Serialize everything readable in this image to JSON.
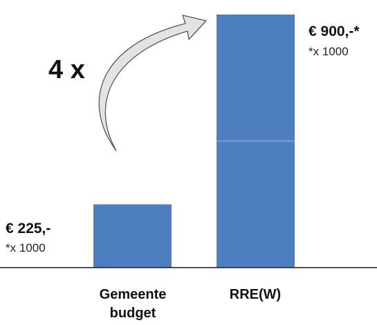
{
  "chart_data": {
    "type": "bar",
    "categories": [
      "Gemeente budget",
      "RRE(W)"
    ],
    "values": [
      225,
      900
    ],
    "segments": [
      [
        225
      ],
      [
        450,
        450
      ]
    ],
    "ylim": [
      0,
      900
    ],
    "grid": false,
    "bar_color": "#4d7fc0",
    "annotations": {
      "multiplier": "4 x",
      "multiplier_icon": "curved-arrow-icon"
    },
    "value_labels": [
      {
        "value": "€ 225,-",
        "unit": "*x 1000"
      },
      {
        "value": "€ 900,-*",
        "unit": "*x 1000"
      }
    ],
    "category_label_lines": [
      [
        "Gemeente",
        "budget"
      ],
      [
        "RRE(W)"
      ]
    ]
  }
}
